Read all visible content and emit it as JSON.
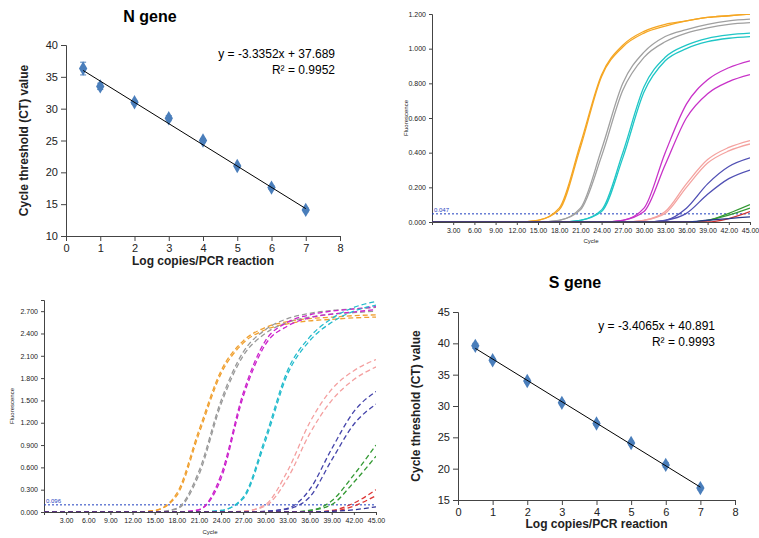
{
  "chart_data": [
    {
      "type": "scatter",
      "title": "N gene",
      "x_label": "Log copies/PCR reaction",
      "y_label": "Cycle threshold (CT) value",
      "x": [
        0.5,
        1,
        2,
        3,
        4,
        5,
        6,
        7
      ],
      "series": [
        {
          "type": "scatter",
          "marker": "diamond",
          "color": "#4a7ebb",
          "values": [
            36.3,
            33.5,
            31.0,
            28.5,
            25.0,
            21.0,
            17.6,
            14.1
          ],
          "errors": [
            1.0,
            0.5,
            0.3,
            0.4,
            0.3,
            0.2,
            0.3,
            0.3
          ]
        },
        {
          "type": "line",
          "color": "#000000",
          "x": [
            0.5,
            7
          ],
          "values": [
            36.0,
            14.3
          ]
        }
      ],
      "annotations": [
        "y = -3.3352x + 37.689",
        "R² = 0.9952"
      ],
      "xlim": [
        0,
        8
      ],
      "xticks": [
        0,
        1,
        2,
        3,
        4,
        5,
        6,
        7,
        8
      ],
      "ylim": [
        10,
        40
      ],
      "yticks": [
        10,
        15,
        20,
        25,
        30,
        35,
        40
      ]
    },
    {
      "type": "line",
      "x_label": "Cycle",
      "y_label": "Fluorescence",
      "threshold": 0.047,
      "x": [
        0,
        3,
        6,
        9,
        12,
        15,
        18,
        21,
        24,
        27,
        30,
        33,
        36,
        39,
        42,
        45
      ],
      "series": [
        {
          "color": "#f5a623",
          "line_style": "solid",
          "values": [
            0,
            0,
            0,
            0,
            0,
            0.01,
            0.08,
            0.45,
            0.85,
            1.02,
            1.1,
            1.14,
            1.16,
            1.18,
            1.19,
            1.2
          ]
        },
        {
          "color": "#f5a623",
          "line_style": "solid",
          "values": [
            0,
            0,
            0,
            0,
            0,
            0.01,
            0.07,
            0.43,
            0.84,
            1.01,
            1.09,
            1.13,
            1.16,
            1.18,
            1.19,
            1.2
          ]
        },
        {
          "color": "#a0a0a0",
          "line_style": "solid",
          "values": [
            0,
            0,
            0,
            0,
            0,
            0,
            0.01,
            0.08,
            0.42,
            0.8,
            0.98,
            1.07,
            1.11,
            1.14,
            1.16,
            1.17
          ]
        },
        {
          "color": "#a0a0a0",
          "line_style": "solid",
          "values": [
            0,
            0,
            0,
            0,
            0,
            0,
            0.01,
            0.07,
            0.38,
            0.76,
            0.95,
            1.04,
            1.09,
            1.12,
            1.14,
            1.15
          ]
        },
        {
          "color": "#1fc6c6",
          "line_style": "solid",
          "values": [
            0,
            0,
            0,
            0,
            0,
            0,
            0,
            0.01,
            0.07,
            0.4,
            0.78,
            0.95,
            1.02,
            1.06,
            1.08,
            1.09
          ]
        },
        {
          "color": "#1fc6c6",
          "line_style": "solid",
          "values": [
            0,
            0,
            0,
            0,
            0,
            0,
            0,
            0.01,
            0.06,
            0.37,
            0.75,
            0.93,
            1.0,
            1.04,
            1.06,
            1.07
          ]
        },
        {
          "color": "#c832c8",
          "line_style": "solid",
          "values": [
            0,
            0,
            0,
            0,
            0,
            0,
            0,
            0,
            0,
            0.01,
            0.08,
            0.4,
            0.68,
            0.82,
            0.89,
            0.93
          ]
        },
        {
          "color": "#c832c8",
          "line_style": "solid",
          "values": [
            0,
            0,
            0,
            0,
            0,
            0,
            0,
            0,
            0,
            0.01,
            0.06,
            0.33,
            0.6,
            0.74,
            0.81,
            0.85
          ]
        },
        {
          "color": "#f4a3a0",
          "line_style": "solid",
          "values": [
            0,
            0,
            0,
            0,
            0,
            0,
            0,
            0,
            0,
            0,
            0.01,
            0.06,
            0.22,
            0.36,
            0.43,
            0.47
          ]
        },
        {
          "color": "#f4a3a0",
          "line_style": "solid",
          "values": [
            0,
            0,
            0,
            0,
            0,
            0,
            0,
            0,
            0,
            0,
            0.01,
            0.05,
            0.2,
            0.34,
            0.41,
            0.45
          ]
        },
        {
          "color": "#5050b4",
          "line_style": "solid",
          "values": [
            0,
            0,
            0,
            0,
            0,
            0,
            0,
            0,
            0,
            0,
            0,
            0.01,
            0.08,
            0.22,
            0.32,
            0.37
          ]
        },
        {
          "color": "#5050b4",
          "line_style": "solid",
          "values": [
            0,
            0,
            0,
            0,
            0,
            0,
            0,
            0,
            0,
            0,
            0,
            0.01,
            0.05,
            0.16,
            0.25,
            0.3
          ]
        },
        {
          "color": "#339933",
          "line_style": "solid",
          "values": [
            0,
            0,
            0,
            0,
            0,
            0,
            0,
            0,
            0,
            0,
            0,
            0,
            0,
            0.01,
            0.05,
            0.1
          ]
        },
        {
          "color": "#339933",
          "line_style": "solid",
          "values": [
            0,
            0,
            0,
            0,
            0,
            0,
            0,
            0,
            0,
            0,
            0,
            0,
            0,
            0.01,
            0.04,
            0.08
          ]
        },
        {
          "color": "#cc3333",
          "line_style": "solid",
          "values": [
            0,
            0,
            0,
            0,
            0,
            0,
            0,
            0,
            0,
            0,
            0,
            0,
            0,
            0,
            0.02,
            0.06
          ]
        },
        {
          "color": "#2a3a8c",
          "line_style": "solid",
          "values": [
            0,
            0,
            0,
            0,
            0,
            0,
            0,
            0,
            0,
            0,
            0,
            0,
            0,
            0.01,
            0.02,
            0.03
          ]
        }
      ],
      "xlim": [
        0,
        45
      ],
      "xticks": [
        {
          "value": 3,
          "label": "3.00"
        },
        {
          "value": 6,
          "label": "6.00"
        },
        {
          "value": 9,
          "label": "9.00"
        },
        {
          "value": 12,
          "label": "12.00"
        },
        {
          "value": 15,
          "label": "15.00"
        },
        {
          "value": 18,
          "label": "18.00"
        },
        {
          "value": 21,
          "label": "21.00"
        },
        {
          "value": 24,
          "label": "24.00"
        },
        {
          "value": 27,
          "label": "27.00"
        },
        {
          "value": 30,
          "label": "30.00"
        },
        {
          "value": 33,
          "label": "33.00"
        },
        {
          "value": 36,
          "label": "36.00"
        },
        {
          "value": 39,
          "label": "39.00"
        },
        {
          "value": 42,
          "label": "42.00"
        },
        {
          "value": 45,
          "label": "45.00"
        }
      ],
      "ylim": [
        0,
        1.2
      ],
      "yticks": [
        {
          "value": 0,
          "label": "0.000"
        },
        {
          "value": 0.2,
          "label": "0.200"
        },
        {
          "value": 0.4,
          "label": "0.400"
        },
        {
          "value": 0.6,
          "label": "0.600"
        },
        {
          "value": 0.8,
          "label": "0.800"
        },
        {
          "value": 1.0,
          "label": "1.000"
        },
        {
          "value": 1.2,
          "label": "1.200"
        }
      ]
    },
    {
      "type": "line",
      "x_label": "Cycle",
      "y_label": "Fluorescence",
      "threshold": 0.096,
      "x": [
        0,
        3,
        6,
        9,
        12,
        15,
        18,
        21,
        24,
        27,
        30,
        33,
        36,
        39,
        42,
        45
      ],
      "series": [
        {
          "color": "#f0a030",
          "line_style": "dashed",
          "values": [
            0,
            0,
            0,
            0,
            0,
            0.02,
            0.25,
            1.1,
            1.9,
            2.3,
            2.48,
            2.56,
            2.6,
            2.62,
            2.64,
            2.65
          ]
        },
        {
          "color": "#f0a030",
          "line_style": "dashed",
          "values": [
            0,
            0,
            0,
            0,
            0,
            0.02,
            0.22,
            1.05,
            1.86,
            2.27,
            2.45,
            2.53,
            2.57,
            2.59,
            2.61,
            2.62
          ]
        },
        {
          "color": "#999999",
          "line_style": "dashed",
          "values": [
            0,
            0,
            0,
            0,
            0,
            0,
            0.05,
            0.55,
            1.5,
            2.15,
            2.45,
            2.6,
            2.67,
            2.71,
            2.73,
            2.75
          ]
        },
        {
          "color": "#999999",
          "line_style": "dashed",
          "values": [
            0,
            0,
            0,
            0,
            0,
            0,
            0.04,
            0.5,
            1.45,
            2.1,
            2.4,
            2.55,
            2.62,
            2.66,
            2.68,
            2.7
          ]
        },
        {
          "color": "#cc22cc",
          "line_style": "dashed",
          "values": [
            0,
            0,
            0,
            0,
            0,
            0,
            0,
            0.03,
            0.5,
            1.6,
            2.3,
            2.55,
            2.65,
            2.7,
            2.73,
            2.76
          ]
        },
        {
          "color": "#cc22cc",
          "line_style": "dashed",
          "values": [
            0,
            0,
            0,
            0,
            0,
            0,
            0,
            0.03,
            0.45,
            1.55,
            2.25,
            2.5,
            2.61,
            2.66,
            2.69,
            2.72
          ]
        },
        {
          "color": "#22bbcc",
          "line_style": "dashed",
          "values": [
            0,
            0,
            0,
            0,
            0,
            0,
            0,
            0,
            0.02,
            0.2,
            1.0,
            1.9,
            2.35,
            2.6,
            2.75,
            2.83
          ]
        },
        {
          "color": "#22bbcc",
          "line_style": "dashed",
          "values": [
            0,
            0,
            0,
            0,
            0,
            0,
            0,
            0,
            0.02,
            0.18,
            0.95,
            1.85,
            2.3,
            2.55,
            2.7,
            2.78
          ]
        },
        {
          "color": "#f4a0a0",
          "line_style": "dashed",
          "values": [
            0,
            0,
            0,
            0,
            0,
            0,
            0,
            0,
            0,
            0.01,
            0.1,
            0.55,
            1.2,
            1.65,
            1.9,
            2.05
          ]
        },
        {
          "color": "#f4a0a0",
          "line_style": "dashed",
          "values": [
            0,
            0,
            0,
            0,
            0,
            0,
            0,
            0,
            0,
            0.01,
            0.08,
            0.45,
            1.05,
            1.5,
            1.78,
            1.95
          ]
        },
        {
          "color": "#4444aa",
          "line_style": "dashed",
          "values": [
            0,
            0,
            0,
            0,
            0,
            0,
            0,
            0,
            0,
            0,
            0.01,
            0.05,
            0.3,
            0.85,
            1.35,
            1.62
          ]
        },
        {
          "color": "#4444aa",
          "line_style": "dashed",
          "values": [
            0,
            0,
            0,
            0,
            0,
            0,
            0,
            0,
            0,
            0,
            0.01,
            0.04,
            0.2,
            0.7,
            1.18,
            1.45
          ]
        },
        {
          "color": "#339933",
          "line_style": "dashed",
          "values": [
            0,
            0,
            0,
            0,
            0,
            0,
            0,
            0,
            0,
            0,
            0,
            0,
            0.02,
            0.15,
            0.5,
            0.9
          ]
        },
        {
          "color": "#339933",
          "line_style": "dashed",
          "values": [
            0,
            0,
            0,
            0,
            0,
            0,
            0,
            0,
            0,
            0,
            0,
            0,
            0.02,
            0.1,
            0.4,
            0.75
          ]
        },
        {
          "color": "#dd3333",
          "line_style": "dashed",
          "values": [
            0,
            0,
            0,
            0,
            0,
            0,
            0,
            0,
            0,
            0,
            0,
            0,
            0,
            0.02,
            0.12,
            0.3
          ]
        },
        {
          "color": "#dd3333",
          "line_style": "dashed",
          "values": [
            0,
            0,
            0,
            0,
            0,
            0,
            0,
            0,
            0,
            0,
            0,
            0,
            0,
            0.01,
            0.08,
            0.22
          ]
        },
        {
          "color": "#333399",
          "line_style": "dashed",
          "values": [
            0,
            0,
            0,
            0,
            0,
            0,
            0,
            0,
            0,
            0,
            0,
            0,
            0,
            0.01,
            0.03,
            0.07
          ]
        }
      ],
      "xlim": [
        0,
        45
      ],
      "xticks": [
        {
          "value": 3,
          "label": "3.00"
        },
        {
          "value": 6,
          "label": "6.00"
        },
        {
          "value": 9,
          "label": "9.00"
        },
        {
          "value": 12,
          "label": "12.00"
        },
        {
          "value": 15,
          "label": "15.00"
        },
        {
          "value": 18,
          "label": "18.00"
        },
        {
          "value": 21,
          "label": "21.00"
        },
        {
          "value": 24,
          "label": "24.00"
        },
        {
          "value": 27,
          "label": "27.00"
        },
        {
          "value": 30,
          "label": "30.00"
        },
        {
          "value": 33,
          "label": "33.00"
        },
        {
          "value": 36,
          "label": "36.00"
        },
        {
          "value": 39,
          "label": "39.00"
        },
        {
          "value": 42,
          "label": "42.00"
        },
        {
          "value": 45,
          "label": "45.00"
        }
      ],
      "ylim": [
        0,
        2.85
      ],
      "yticks": [
        {
          "value": 0,
          "label": "0.000"
        },
        {
          "value": 0.3,
          "label": "0.300"
        },
        {
          "value": 0.6,
          "label": "0.600"
        },
        {
          "value": 0.9,
          "label": "0.900"
        },
        {
          "value": 1.2,
          "label": "1.200"
        },
        {
          "value": 1.5,
          "label": "1.500"
        },
        {
          "value": 1.8,
          "label": "1.800"
        },
        {
          "value": 2.1,
          "label": "2.100"
        },
        {
          "value": 2.4,
          "label": "2.400"
        },
        {
          "value": 2.7,
          "label": "2.700"
        }
      ]
    },
    {
      "type": "scatter",
      "title": "S gene",
      "x_label": "Log copies/PCR reaction",
      "y_label": "Cycle threshold (CT) value",
      "x": [
        0.5,
        1,
        2,
        3,
        4,
        5,
        6,
        7
      ],
      "series": [
        {
          "type": "scatter",
          "marker": "diamond",
          "color": "#4a7ebb",
          "values": [
            39.6,
            37.3,
            34.0,
            30.5,
            27.2,
            24.1,
            20.6,
            16.9
          ],
          "errors": [
            0.4,
            0.3,
            0.3,
            0.3,
            0.3,
            0.3,
            0.4,
            0.3
          ]
        },
        {
          "type": "line",
          "color": "#000000",
          "x": [
            0.5,
            7
          ],
          "values": [
            39.2,
            17.05
          ]
        }
      ],
      "annotations": [
        "y = -3.4065x + 40.891",
        "R² = 0.9993"
      ],
      "xlim": [
        0,
        8
      ],
      "xticks": [
        0,
        1,
        2,
        3,
        4,
        5,
        6,
        7,
        8
      ],
      "ylim": [
        15,
        45
      ],
      "yticks": [
        15,
        20,
        25,
        30,
        35,
        40,
        45
      ]
    }
  ]
}
